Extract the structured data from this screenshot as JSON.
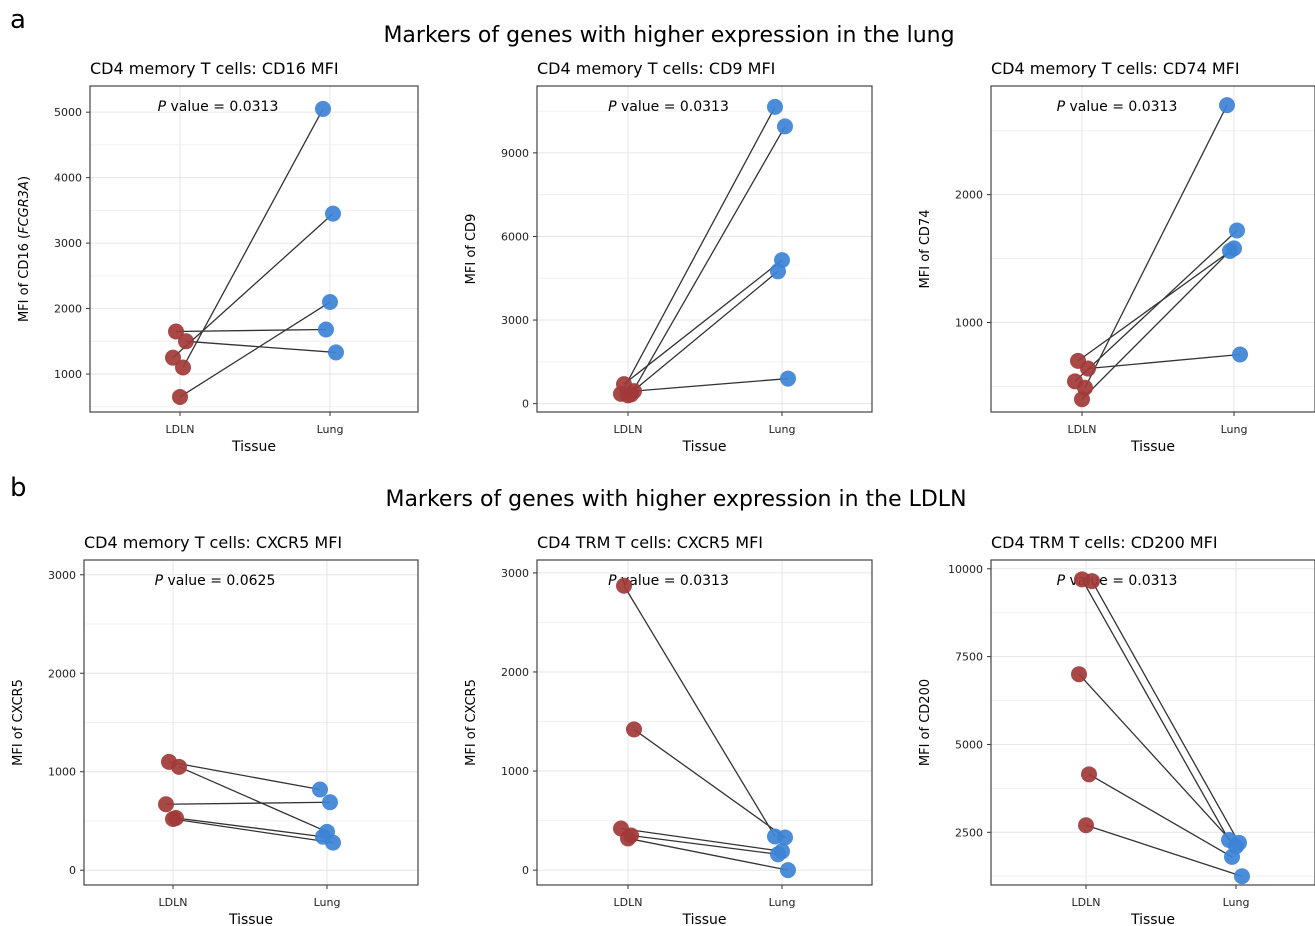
{
  "panels": [
    {
      "letter": "a",
      "heading": "Markers of genes with higher expression in the lung"
    },
    {
      "letter": "b",
      "heading": "Markers of genes with higher expression in the LDLN"
    }
  ],
  "colors": {
    "ldln": "#a13a38",
    "lung": "#3c83d6",
    "line": "#333333",
    "grid": "#e6e6e6"
  },
  "chart_data": [
    {
      "type": "scatter",
      "title": "CD4 memory T cells: CD16 MFI",
      "xlabel": "Tissue",
      "ylabel_pre": "MFI of CD16 (",
      "ylabel_italic": "FCGR3A",
      "ylabel_post": ")",
      "categories": [
        "LDLN",
        "Lung"
      ],
      "yticks": [
        1000,
        2000,
        3000,
        4000,
        5000
      ],
      "ylim": [
        420,
        5400
      ],
      "pvalue_label": "P",
      "pvalue_text": " value = 0.0313",
      "ldln": [
        1650,
        1500,
        1250,
        1100,
        650
      ],
      "lung": [
        5050,
        3450,
        2100,
        1680,
        1330
      ],
      "pairs": [
        [
          0,
          3
        ],
        [
          1,
          4
        ],
        [
          2,
          1
        ],
        [
          3,
          0
        ],
        [
          4,
          2
        ]
      ]
    },
    {
      "type": "scatter",
      "title": "CD4 memory T cells: CD9 MFI",
      "xlabel": "Tissue",
      "ylabel_pre": "MFI of CD9",
      "ylabel_italic": "",
      "ylabel_post": "",
      "categories": [
        "LDLN",
        "Lung"
      ],
      "yticks": [
        0,
        3000,
        6000,
        9000
      ],
      "ylim": [
        -300,
        11400
      ],
      "pvalue_label": "P",
      "pvalue_text": " value = 0.0313",
      "ldln": [
        700,
        450,
        350,
        330,
        300
      ],
      "lung": [
        10650,
        9950,
        5150,
        4750,
        900
      ],
      "pairs": [
        [
          0,
          2
        ],
        [
          1,
          4
        ],
        [
          2,
          0
        ],
        [
          3,
          1
        ],
        [
          4,
          3
        ]
      ]
    },
    {
      "type": "scatter",
      "title": "CD4 memory T cells: CD74 MFI",
      "xlabel": "Tissue",
      "ylabel_pre": "MFI of CD74",
      "ylabel_italic": "",
      "ylabel_post": "",
      "categories": [
        "LDLN",
        "Lung"
      ],
      "yticks": [
        1000,
        2000
      ],
      "ylim": [
        300,
        2850
      ],
      "pvalue_label": "P",
      "pvalue_text": " value = 0.0313",
      "ldln": [
        700,
        640,
        540,
        490,
        400
      ],
      "lung": [
        2700,
        1720,
        1580,
        1560,
        750
      ],
      "pairs": [
        [
          0,
          2
        ],
        [
          1,
          4
        ],
        [
          2,
          1
        ],
        [
          3,
          0
        ],
        [
          4,
          3
        ]
      ]
    },
    {
      "type": "scatter",
      "title": "CD4 memory T cells: CXCR5 MFI",
      "xlabel": "Tissue",
      "ylabel_pre": "MFI of CXCR5",
      "ylabel_italic": "",
      "ylabel_post": "",
      "categories": [
        "LDLN",
        "Lung"
      ],
      "yticks": [
        0,
        1000,
        2000,
        3000
      ],
      "ylim": [
        -150,
        3150
      ],
      "pvalue_label": "P",
      "pvalue_text": " value = 0.0625",
      "ldln": [
        1100,
        1050,
        670,
        530,
        520
      ],
      "lung": [
        820,
        690,
        390,
        340,
        280
      ],
      "pairs": [
        [
          0,
          0
        ],
        [
          1,
          2
        ],
        [
          2,
          1
        ],
        [
          3,
          3
        ],
        [
          4,
          4
        ]
      ]
    },
    {
      "type": "scatter",
      "title": "CD4 TRM T cells: CXCR5 MFI",
      "xlabel": "Tissue",
      "ylabel_pre": "MFI of CXCR5",
      "ylabel_italic": "",
      "ylabel_post": "",
      "categories": [
        "LDLN",
        "Lung"
      ],
      "yticks": [
        0,
        1000,
        2000,
        3000
      ],
      "ylim": [
        -150,
        3130
      ],
      "pvalue_label": "P",
      "pvalue_text": " value = 0.0313",
      "ldln": [
        2870,
        1420,
        420,
        350,
        320
      ],
      "lung": [
        340,
        330,
        190,
        160,
        0
      ],
      "pairs": [
        [
          0,
          0
        ],
        [
          1,
          1
        ],
        [
          2,
          2
        ],
        [
          3,
          3
        ],
        [
          4,
          4
        ]
      ]
    },
    {
      "type": "scatter",
      "title": "CD4 TRM T cells: CD200 MFI",
      "xlabel": "Tissue",
      "ylabel_pre": "MFI of CD200",
      "ylabel_italic": "",
      "ylabel_post": "",
      "categories": [
        "LDLN",
        "Lung"
      ],
      "yticks": [
        2500,
        5000,
        7500,
        10000
      ],
      "ylim": [
        1000,
        10250
      ],
      "pvalue_label": "P",
      "pvalue_text": " value = 0.0313",
      "ldln": [
        9700,
        9650,
        7000,
        4150,
        2700
      ],
      "lung": [
        2280,
        2200,
        2100,
        1800,
        1250
      ],
      "pairs": [
        [
          0,
          0
        ],
        [
          1,
          1
        ],
        [
          2,
          2
        ],
        [
          3,
          3
        ],
        [
          4,
          4
        ]
      ]
    }
  ]
}
